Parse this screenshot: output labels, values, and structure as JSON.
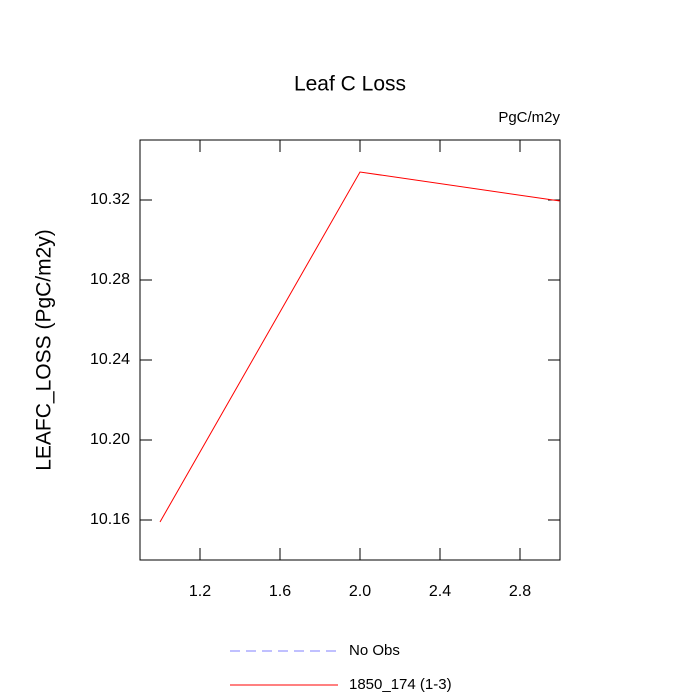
{
  "chart_data": {
    "type": "line",
    "title": "Leaf C Loss",
    "units_label": "PgC/m2y",
    "y_label": "LEAFC_LOSS  (PgC/m2y)",
    "x": [
      1,
      2,
      3
    ],
    "series": [
      {
        "name": "No Obs",
        "color": "#8080ff",
        "dashed": true,
        "values": [
          null,
          null,
          null
        ]
      },
      {
        "name": "1850_174 (1-3)",
        "color": "#ff0000",
        "dashed": false,
        "values": [
          10.159,
          10.334,
          10.3195
        ]
      }
    ],
    "xlim": [
      0.9,
      3.0
    ],
    "xticks": [
      1.2,
      1.6,
      {
        "value": 2,
        "label": "2.0"
      },
      2.4,
      2.8
    ],
    "ylim": [
      10.14,
      10.35
    ],
    "yticks": [
      10.16,
      {
        "value": 10.2,
        "label": "10.20"
      },
      10.24,
      10.28,
      10.32
    ],
    "grid": false
  }
}
